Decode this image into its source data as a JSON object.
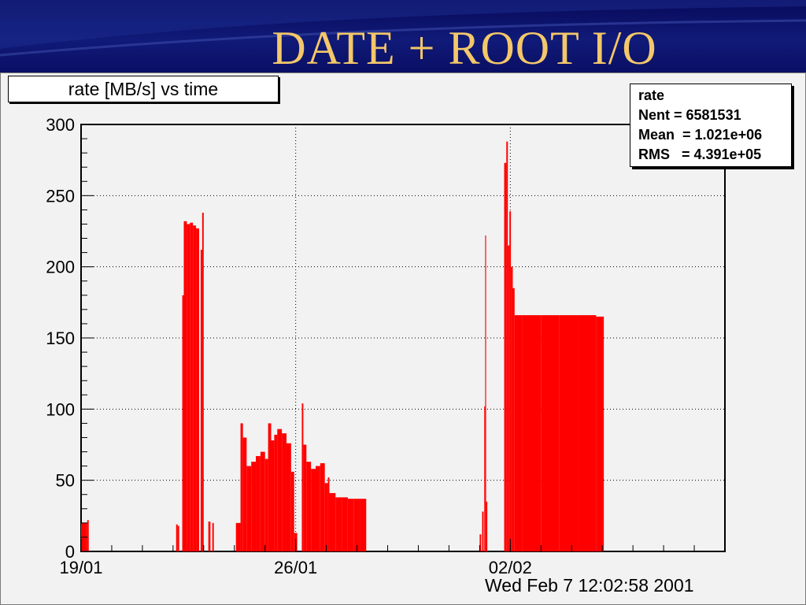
{
  "slide": {
    "title": "DATE + ROOT I/O"
  },
  "stats": {
    "name": "rate",
    "rows": [
      {
        "label": "Nent = 6581531"
      },
      {
        "label": "Mean  = 1.021e+06"
      },
      {
        "label": "RMS   = 4.391e+05"
      }
    ]
  },
  "footer": {
    "timestamp": "Wed Feb  7 12:02:58 2001"
  },
  "chart_data": {
    "type": "bar",
    "title": "rate [MB/s] vs time",
    "xlabel": "",
    "ylabel": "",
    "xunit": "days since 19/01 00:00",
    "xlim": [
      0,
      21
    ],
    "ylim": [
      0,
      300
    ],
    "yticks": [
      0,
      50,
      100,
      150,
      200,
      250,
      300
    ],
    "xticks": [
      {
        "value": 0,
        "label": "19/01"
      },
      {
        "value": 7,
        "label": "26/01"
      },
      {
        "value": 14,
        "label": "02/02"
      }
    ],
    "grid": true,
    "color": "#ff0000",
    "series": [
      {
        "values": [
          [
            0.0,
            0.2,
            20
          ],
          [
            0.2,
            0.25,
            22
          ],
          [
            3.1,
            3.15,
            19
          ],
          [
            3.15,
            3.2,
            18
          ],
          [
            3.3,
            3.35,
            180
          ],
          [
            3.35,
            3.45,
            232
          ],
          [
            3.45,
            3.55,
            230
          ],
          [
            3.55,
            3.65,
            231
          ],
          [
            3.65,
            3.75,
            229
          ],
          [
            3.75,
            3.85,
            227
          ],
          [
            3.9,
            3.95,
            212
          ],
          [
            3.95,
            4.0,
            238
          ],
          [
            4.15,
            4.22,
            21
          ],
          [
            4.28,
            4.33,
            20
          ],
          [
            5.05,
            5.2,
            20
          ],
          [
            5.2,
            5.28,
            90
          ],
          [
            5.28,
            5.4,
            80
          ],
          [
            5.4,
            5.55,
            60
          ],
          [
            5.55,
            5.7,
            63
          ],
          [
            5.7,
            5.85,
            67
          ],
          [
            5.85,
            6.0,
            70
          ],
          [
            6.0,
            6.1,
            65
          ],
          [
            6.1,
            6.2,
            90
          ],
          [
            6.2,
            6.3,
            78
          ],
          [
            6.3,
            6.4,
            82
          ],
          [
            6.4,
            6.55,
            86
          ],
          [
            6.55,
            6.7,
            83
          ],
          [
            6.7,
            6.85,
            76
          ],
          [
            6.85,
            6.95,
            56
          ],
          [
            6.95,
            7.05,
            13
          ],
          [
            7.2,
            7.25,
            104
          ],
          [
            7.25,
            7.35,
            75
          ],
          [
            7.35,
            7.5,
            63
          ],
          [
            7.5,
            7.65,
            58
          ],
          [
            7.65,
            7.8,
            60
          ],
          [
            7.8,
            7.95,
            62
          ],
          [
            7.95,
            8.05,
            48
          ],
          [
            8.05,
            8.1,
            52
          ],
          [
            8.1,
            8.3,
            41
          ],
          [
            8.3,
            8.5,
            38
          ],
          [
            8.5,
            8.7,
            38
          ],
          [
            8.7,
            8.9,
            37
          ],
          [
            8.9,
            9.1,
            37
          ],
          [
            9.1,
            9.3,
            37
          ],
          [
            13.0,
            13.05,
            12
          ],
          [
            13.08,
            13.13,
            28
          ],
          [
            13.15,
            13.18,
            102
          ],
          [
            13.18,
            13.21,
            222
          ],
          [
            13.21,
            13.25,
            35
          ],
          [
            13.8,
            13.87,
            273
          ],
          [
            13.87,
            13.92,
            288
          ],
          [
            13.92,
            13.97,
            215
          ],
          [
            13.97,
            14.02,
            239
          ],
          [
            14.02,
            14.08,
            200
          ],
          [
            14.08,
            14.14,
            185
          ],
          [
            14.14,
            14.4,
            166
          ],
          [
            14.4,
            15.0,
            166
          ],
          [
            15.0,
            15.6,
            166
          ],
          [
            15.6,
            16.2,
            166
          ],
          [
            16.2,
            16.8,
            166
          ],
          [
            16.8,
            17.05,
            165
          ]
        ]
      }
    ]
  }
}
